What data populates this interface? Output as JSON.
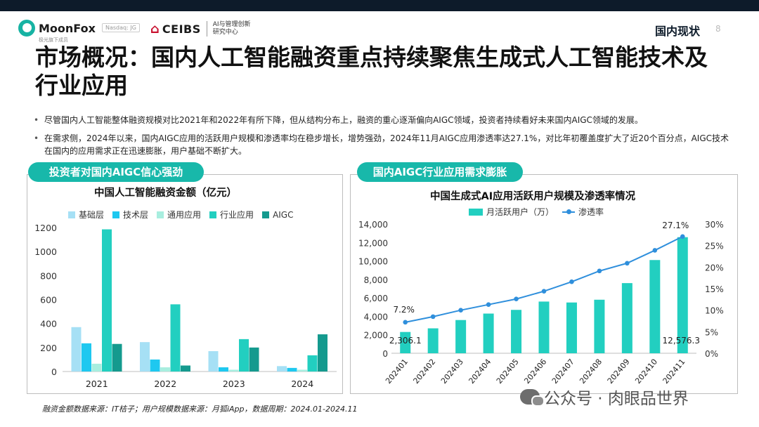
{
  "header": {
    "logo_name": "MoonFox",
    "logo_sub": "极光旗下成员",
    "nasdaq": "Nasdaq: JG",
    "partner": "CEIBS",
    "partner_side_1": "AI与管理创新",
    "partner_side_2": "研究中心",
    "section": "国内现状",
    "page_number": "8"
  },
  "title": "市场概况：国内人工智能融资重点持续聚焦生成式人工智能技术及行业应用",
  "bullets": [
    "尽管国内人工智能整体融资规模对比2021年和2022年有所下降，但从结构分布上，融资的重心逐渐偏向AIGC领域，投资者持续看好未来国内AIGC领域的发展。",
    "在需求侧，2024年以来，国内AIGC应用的活跃用户规模和渗透率均在稳步增长，增势强劲，2024年11月AIGC应用渗透率达27.1%，对比年初覆盖度扩大了近20个百分点，AIGC技术在国内的应用需求正在迅速膨胀，用户基础不断扩大。"
  ],
  "left_panel": {
    "tag": "投资者对国内AIGC信心强劲"
  },
  "right_panel": {
    "tag": "国内AIGC行业应用需求膨胀"
  },
  "chart_data": [
    {
      "type": "bar",
      "title": "中国人工智能融资金额（亿元）",
      "categories": [
        "2021",
        "2022",
        "2023",
        "2024"
      ],
      "series": [
        {
          "name": "基础层",
          "color": "#a6e0f5",
          "values": [
            370,
            245,
            170,
            45
          ]
        },
        {
          "name": "技术层",
          "color": "#1ec8f0",
          "values": [
            235,
            100,
            35,
            30
          ]
        },
        {
          "name": "通用应用",
          "color": "#a8eedf",
          "values": [
            65,
            35,
            15,
            15
          ]
        },
        {
          "name": "行业应用",
          "color": "#22cfc0",
          "values": [
            1185,
            560,
            270,
            135
          ]
        },
        {
          "name": "AIGC",
          "color": "#149a8e",
          "values": [
            230,
            50,
            200,
            310
          ]
        }
      ],
      "yticks": [
        "0",
        "200",
        "400",
        "600",
        "800",
        "1000",
        "1200"
      ],
      "ylim": [
        0,
        1200
      ]
    },
    {
      "type": "bar+line",
      "title": "中国生成式AI应用活跃用户规模及渗透率情况",
      "categories": [
        "202401",
        "202402",
        "202403",
        "202404",
        "202405",
        "202406",
        "202407",
        "202408",
        "202409",
        "202410",
        "202411"
      ],
      "series": [
        {
          "name": "月活跃用户（万）",
          "color": "#22cfc0",
          "axis": "left",
          "values": [
            2306.1,
            2700,
            3600,
            4300,
            4700,
            5600,
            5500,
            5800,
            7600,
            10100,
            12576.3
          ]
        },
        {
          "name": "渗透率",
          "color": "#2f8fdc",
          "axis": "right",
          "values": [
            7.2,
            8.5,
            10.0,
            11.3,
            12.6,
            14.4,
            16.6,
            19.1,
            20.9,
            23.9,
            27.1
          ]
        }
      ],
      "yticks_left": [
        "0",
        "2,000",
        "4,000",
        "6,000",
        "8,000",
        "10,000",
        "12,000",
        "14,000"
      ],
      "yticks_right": [
        "0%",
        "5%",
        "10%",
        "15%",
        "20%",
        "25%",
        "30%"
      ],
      "ylim_left": [
        0,
        14000
      ],
      "ylim_right": [
        0,
        30
      ],
      "annotations": {
        "first_bar": "2,306.1",
        "last_bar": "12,576.3",
        "first_rate": "7.2%",
        "last_rate": "27.1%"
      }
    }
  ],
  "footnote": "融资金额数据来源：IT桔子；用户规模数据来源：月狐iApp，数据周期：2024.01-2024.11",
  "wechat": "公众号 · 肉眼品世界"
}
